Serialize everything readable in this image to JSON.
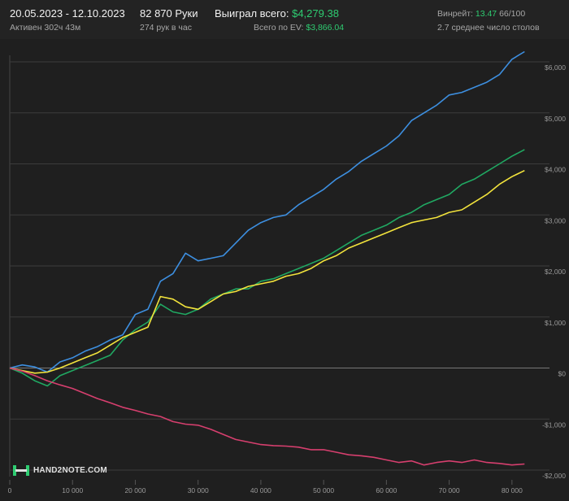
{
  "header": {
    "date_range": "20.05.2023 - 12.10.2023",
    "active": "Активен 302ч 43м",
    "hands": "82 870 Руки",
    "hands_per_hour": "274 рук в час",
    "won_label": "Выиграл всего:",
    "won_value": "$4,279.38",
    "ev_label": "Всего по EV:",
    "ev_value": "$3,866.04",
    "winrate_label": "Винрейт:",
    "winrate_value": "13.47",
    "winrate_sample": "66/100",
    "tables_avg": "2.7 среднее число столов"
  },
  "logo": {
    "text": "HAND2NOTE.COM"
  },
  "chart_data": {
    "type": "line",
    "xlim": [
      0,
      82870
    ],
    "ylim": [
      -2000,
      6000
    ],
    "x_ticks": [
      0,
      10000,
      20000,
      30000,
      40000,
      50000,
      60000,
      70000,
      80000
    ],
    "x_tick_labels": [
      "0",
      "10 000",
      "20 000",
      "30 000",
      "40 000",
      "50 000",
      "60 000",
      "70 000",
      "80 000"
    ],
    "y_ticks": [
      -2000,
      -1000,
      0,
      1000,
      2000,
      3000,
      4000,
      5000,
      6000
    ],
    "y_tick_labels": [
      "-$2,000",
      "-$1,000",
      "$0",
      "$1,000",
      "$2,000",
      "$3,000",
      "$4,000",
      "$5,000",
      "$6,000"
    ],
    "grid": true,
    "series": [
      {
        "color": "#3d8fe0",
        "x": [
          0,
          2000,
          4000,
          6000,
          8000,
          10000,
          12000,
          14000,
          16000,
          18000,
          20000,
          22000,
          24000,
          26000,
          28000,
          30000,
          32000,
          34000,
          36000,
          38000,
          40000,
          42000,
          44000,
          46000,
          48000,
          50000,
          52000,
          54000,
          56000,
          58000,
          60000,
          62000,
          64000,
          66000,
          68000,
          70000,
          72000,
          74000,
          76000,
          78000,
          80000,
          82000
        ],
        "values": [
          0,
          60,
          20,
          -80,
          120,
          200,
          330,
          420,
          550,
          650,
          1050,
          1150,
          1700,
          1850,
          2250,
          2100,
          2150,
          2200,
          2450,
          2700,
          2850,
          2950,
          3000,
          3200,
          3350,
          3500,
          3700,
          3850,
          4050,
          4200,
          4350,
          4550,
          4850,
          5000,
          5150,
          5350,
          5400,
          5500,
          5600,
          5750,
          6050,
          6200
        ]
      },
      {
        "color": "#20a862",
        "x": [
          0,
          2000,
          4000,
          6000,
          8000,
          10000,
          12000,
          14000,
          16000,
          18000,
          20000,
          22000,
          24000,
          26000,
          28000,
          30000,
          32000,
          34000,
          36000,
          38000,
          40000,
          42000,
          44000,
          46000,
          48000,
          50000,
          52000,
          54000,
          56000,
          58000,
          60000,
          62000,
          64000,
          66000,
          68000,
          70000,
          72000,
          74000,
          76000,
          78000,
          80000,
          82000
        ],
        "values": [
          0,
          -100,
          -250,
          -350,
          -150,
          -50,
          50,
          150,
          250,
          550,
          750,
          900,
          1250,
          1100,
          1050,
          1150,
          1350,
          1450,
          1550,
          1550,
          1700,
          1750,
          1850,
          1950,
          2050,
          2150,
          2300,
          2450,
          2600,
          2700,
          2800,
          2950,
          3050,
          3200,
          3300,
          3400,
          3600,
          3700,
          3850,
          4000,
          4150,
          4280
        ]
      },
      {
        "color": "#f2e33c",
        "x": [
          0,
          2000,
          4000,
          6000,
          8000,
          10000,
          12000,
          14000,
          16000,
          18000,
          20000,
          22000,
          24000,
          26000,
          28000,
          30000,
          32000,
          34000,
          36000,
          38000,
          40000,
          42000,
          44000,
          46000,
          48000,
          50000,
          52000,
          54000,
          56000,
          58000,
          60000,
          62000,
          64000,
          66000,
          68000,
          70000,
          72000,
          74000,
          76000,
          78000,
          80000,
          82000
        ],
        "values": [
          0,
          -50,
          -100,
          -80,
          0,
          100,
          200,
          300,
          450,
          600,
          700,
          800,
          1400,
          1350,
          1200,
          1150,
          1300,
          1450,
          1500,
          1600,
          1650,
          1700,
          1800,
          1850,
          1950,
          2100,
          2200,
          2350,
          2450,
          2550,
          2650,
          2750,
          2850,
          2900,
          2950,
          3050,
          3100,
          3250,
          3400,
          3600,
          3750,
          3870
        ]
      },
      {
        "color": "#d63f6e",
        "x": [
          0,
          2000,
          4000,
          6000,
          8000,
          10000,
          12000,
          14000,
          16000,
          18000,
          20000,
          22000,
          24000,
          26000,
          28000,
          30000,
          32000,
          34000,
          36000,
          38000,
          40000,
          42000,
          44000,
          46000,
          48000,
          50000,
          52000,
          54000,
          56000,
          58000,
          60000,
          62000,
          64000,
          66000,
          68000,
          70000,
          72000,
          74000,
          76000,
          78000,
          80000,
          82000
        ],
        "values": [
          0,
          -60,
          -150,
          -250,
          -330,
          -400,
          -500,
          -600,
          -680,
          -770,
          -830,
          -900,
          -950,
          -1050,
          -1100,
          -1120,
          -1200,
          -1300,
          -1400,
          -1450,
          -1500,
          -1520,
          -1530,
          -1550,
          -1600,
          -1600,
          -1650,
          -1700,
          -1720,
          -1750,
          -1800,
          -1850,
          -1820,
          -1900,
          -1850,
          -1820,
          -1850,
          -1800,
          -1850,
          -1870,
          -1900,
          -1880
        ]
      }
    ]
  }
}
